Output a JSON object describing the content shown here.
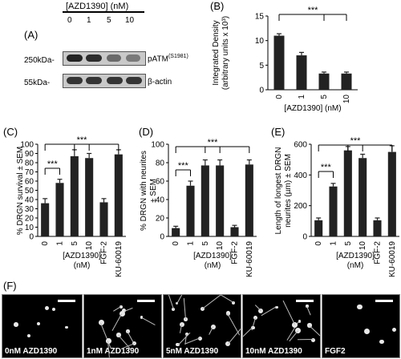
{
  "panel_a": {
    "label": "(A)",
    "treatment_header": "[AZD1390] (nM)",
    "lanes": [
      "0",
      "1",
      "5",
      "10"
    ],
    "rows": [
      {
        "marker": "250kDa-",
        "protein": "pATM",
        "superscript": "(S1981)",
        "band_intensity": [
          0.95,
          0.9,
          0.55,
          0.45
        ]
      },
      {
        "marker": "55kDa-",
        "protein": "β-actin",
        "superscript": "",
        "band_intensity": [
          0.85,
          0.85,
          0.85,
          0.85
        ]
      }
    ]
  },
  "chart_data": [
    {
      "panel": "(B)",
      "type": "bar",
      "categories": [
        "0",
        "1",
        "5",
        "10"
      ],
      "values": [
        11,
        7,
        3.3,
        3.3
      ],
      "errors": [
        0.4,
        0.6,
        0.3,
        0.3
      ],
      "xlabel": "[AZD1390] (nM)",
      "ylabel": "Integrated Density (arbitrary units x 10³)",
      "ylabel_lines": [
        "Integrated Density",
        "(arbitrary units x 10³)"
      ],
      "ylim": [
        0,
        15
      ],
      "yticks": [
        0,
        5,
        10,
        15
      ],
      "significance": [
        {
          "label": "***"
        }
      ]
    },
    {
      "panel": "(C)",
      "type": "bar",
      "categories": [
        "0",
        "1",
        "5",
        "10",
        "FGF-2",
        "KU-60019"
      ],
      "values": [
        36,
        58,
        87,
        85,
        37,
        89
      ],
      "errors": [
        5,
        4,
        7,
        5,
        4,
        5
      ],
      "xlabel": "[AZD1390] (nM)",
      "xlabel_lines": [
        "[AZD1390]",
        "(nM)"
      ],
      "ylabel": "% DRGN survival ± SEM",
      "ylabel_lines": [
        "% DRGN survival ± SEM"
      ],
      "ylim": [
        0,
        100
      ],
      "yticks": [
        0,
        10,
        20,
        30,
        40,
        50,
        60,
        70,
        80,
        90,
        100
      ],
      "significance": [
        {
          "label": "***"
        },
        {
          "label": "***"
        }
      ]
    },
    {
      "panel": "(D)",
      "type": "bar",
      "categories": [
        "0",
        "1",
        "5",
        "10",
        "FGF-2",
        "KU-60019"
      ],
      "values": [
        9,
        55,
        77,
        77,
        10,
        78
      ],
      "errors": [
        2,
        5,
        6,
        6,
        2,
        5
      ],
      "xlabel": "[AZD1390] (nM)",
      "xlabel_lines": [
        "[AZD1390]",
        "(nM)"
      ],
      "ylabel": "% DRGN with neurites ± SEM",
      "ylabel_lines": [
        "% DRGN with neurites",
        "± SEM"
      ],
      "ylim": [
        0,
        100
      ],
      "yticks": [
        0,
        20,
        40,
        60,
        80,
        100
      ],
      "significance": [
        {
          "label": "***"
        },
        {
          "label": "***"
        }
      ]
    },
    {
      "panel": "(E)",
      "type": "bar",
      "categories": [
        "0",
        "1",
        "5",
        "10",
        "FGF-2",
        "KU-60019"
      ],
      "values": [
        105,
        325,
        560,
        510,
        105,
        550
      ],
      "errors": [
        15,
        20,
        25,
        25,
        15,
        40
      ],
      "xlabel": "[AZD1390] (nM)",
      "xlabel_lines": [
        "[AZD1390]",
        "(nM)"
      ],
      "ylabel": "Length of longest DRGN neurites (µm) ± SEM",
      "ylabel_lines": [
        "Length of longest DRGN",
        "neurites (µm) ± SEM"
      ],
      "ylim": [
        0,
        600
      ],
      "yticks": [
        0,
        200,
        400,
        600
      ],
      "significance": [
        {
          "label": "***"
        },
        {
          "label": "***"
        }
      ]
    }
  ],
  "panel_f": {
    "label": "(F)",
    "images": [
      "0nM AZD1390",
      "1nM AZD1390",
      "5nM AZD1390",
      "10nM AZD1390",
      "FGF2"
    ]
  }
}
